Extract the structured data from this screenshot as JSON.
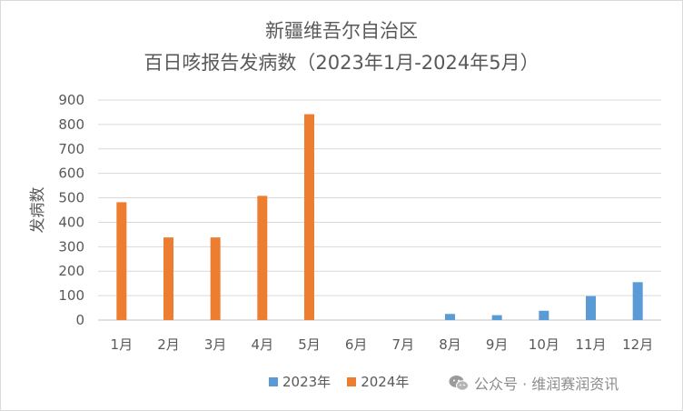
{
  "chart_data": {
    "type": "bar",
    "title": "新疆维吾尔自治区",
    "subtitle": "百日咳报告发病数（2023年1月-2024年5月）",
    "ylabel": "发病数",
    "xlabel": "",
    "ylim": [
      0,
      900
    ],
    "ytick_step": 100,
    "grid": true,
    "legend_position": "bottom",
    "categories": [
      "1月",
      "2月",
      "3月",
      "4月",
      "5月",
      "6月",
      "7月",
      "8月",
      "9月",
      "10月",
      "11月",
      "12月"
    ],
    "series": [
      {
        "name": "2023年",
        "color": "#5b9bd5",
        "values": [
          null,
          null,
          null,
          null,
          null,
          null,
          null,
          25,
          20,
          38,
          98,
          155
        ]
      },
      {
        "name": "2024年",
        "color": "#ed7d31",
        "values": [
          482,
          338,
          338,
          508,
          842,
          null,
          null,
          null,
          null,
          null,
          null,
          null
        ]
      }
    ]
  },
  "watermark": {
    "icon": "wechat-icon",
    "text": "公众号 · 维润赛润资讯"
  }
}
